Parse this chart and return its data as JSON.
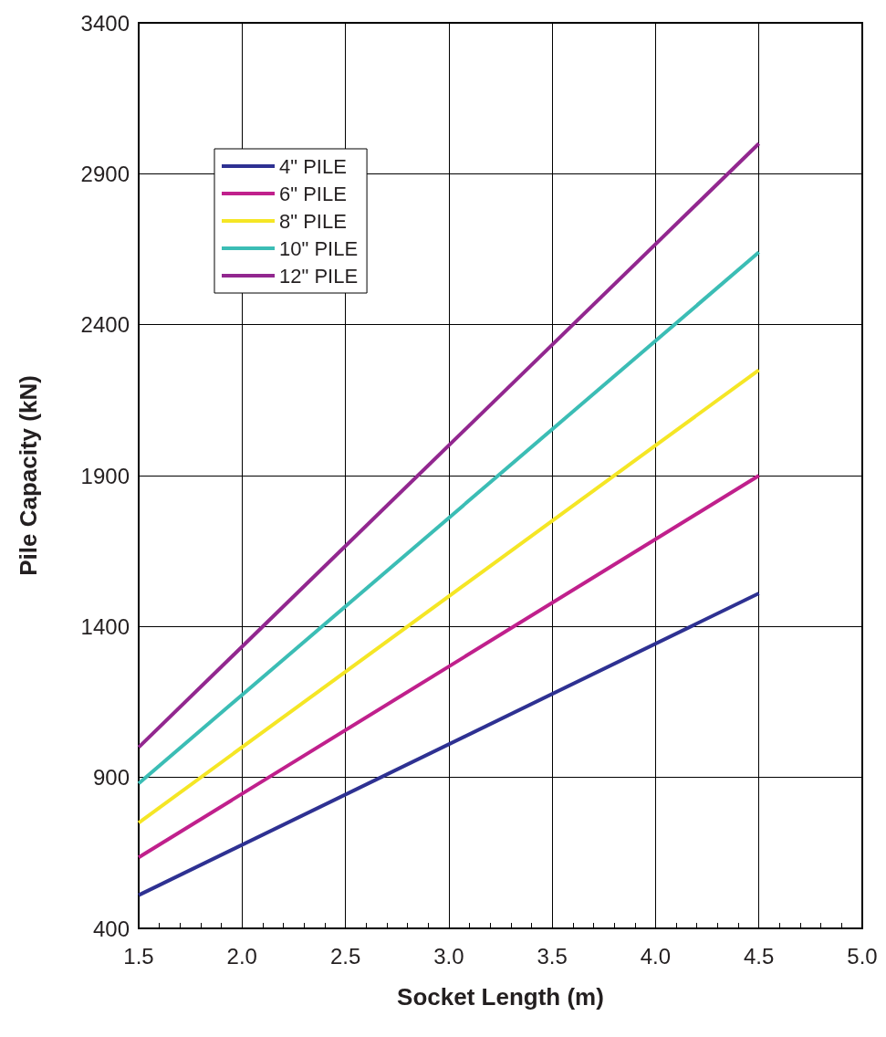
{
  "chart_data": {
    "type": "line",
    "xlabel": "Socket Length (m)",
    "ylabel": "Pile Capacity (kN)",
    "x": [
      1.5,
      4.5
    ],
    "series": [
      {
        "name": "4\" PILE",
        "color": "#2e3192",
        "values": [
          510,
          1510
        ]
      },
      {
        "name": "6\" PILE",
        "color": "#c0208c",
        "values": [
          635,
          1900
        ]
      },
      {
        "name": "8\" PILE",
        "color": "#f5e625",
        "values": [
          750,
          2250
        ]
      },
      {
        "name": "10\" PILE",
        "color": "#3bbdb5",
        "values": [
          880,
          2640
        ]
      },
      {
        "name": "12\" PILE",
        "color": "#92278f",
        "values": [
          1000,
          3000
        ]
      }
    ],
    "xlim": [
      1.5,
      5.0
    ],
    "xticks": [
      1.5,
      {
        "value": 2.0,
        "label": "2.0"
      },
      2.5,
      {
        "value": 3.0,
        "label": "3.0"
      },
      3.5,
      {
        "value": 4.0,
        "label": "4.0"
      },
      4.5,
      {
        "value": 5.0,
        "label": "5.0"
      }
    ],
    "ylim": [
      400,
      3400
    ],
    "yticks": [
      400,
      900,
      1400,
      1900,
      2400,
      2900,
      3400
    ],
    "grid": true,
    "legend": "top left",
    "marker": "none",
    "line_style": "solid"
  }
}
